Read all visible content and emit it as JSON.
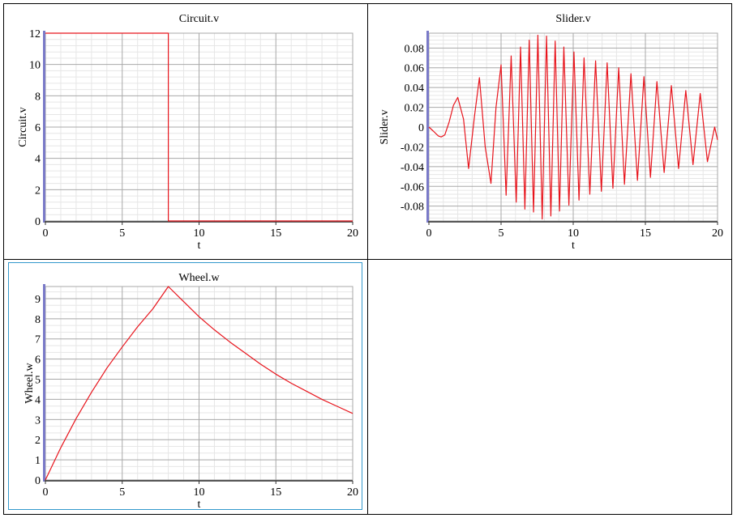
{
  "colors": {
    "line": "#e8141c",
    "grid_major": "#a8a8a8",
    "grid_minor": "#e6e6e6",
    "left_axis_bar": "#7a7ac8",
    "selected_border": "#3399cc"
  },
  "plots": [
    {
      "title": "Circuit.v",
      "xlabel": "t",
      "ylabel": "Circuit.v",
      "yticklabels": [
        "0",
        "2",
        "4",
        "6",
        "8",
        "10",
        "12"
      ],
      "xticklabels": [
        "0",
        "5",
        "10",
        "15",
        "20"
      ]
    },
    {
      "title": "Slider.v",
      "xlabel": "t",
      "ylabel": "Slider.v",
      "yticklabels": [
        "-0.08",
        "-0.06",
        "-0.04",
        "-0.02",
        "0",
        "0.02",
        "0.04",
        "0.06",
        "0.08"
      ],
      "xticklabels": [
        "0",
        "5",
        "10",
        "15",
        "20"
      ]
    },
    {
      "title": "Wheel.w",
      "xlabel": "t",
      "ylabel": "Wheel.w",
      "yticklabels": [
        "0",
        "1",
        "2",
        "3",
        "4",
        "5",
        "6",
        "7",
        "8",
        "9"
      ],
      "xticklabels": [
        "0",
        "5",
        "10",
        "15",
        "20"
      ]
    }
  ],
  "chart_data": [
    {
      "type": "line",
      "title": "Circuit.v",
      "xlabel": "t",
      "ylabel": "Circuit.v",
      "xlim": [
        0,
        20
      ],
      "ylim": [
        0,
        12
      ],
      "xticks": [
        0,
        5,
        10,
        15,
        20
      ],
      "yticks": [
        0,
        2,
        4,
        6,
        8,
        10,
        12
      ],
      "grid": true,
      "series": [
        {
          "x": [
            0,
            8,
            8,
            20
          ],
          "values": [
            12,
            12,
            0,
            0
          ]
        }
      ]
    },
    {
      "type": "line",
      "title": "Slider.v",
      "xlabel": "t",
      "ylabel": "Slider.v",
      "xlim": [
        0,
        20
      ],
      "ylim": [
        -0.095,
        0.095
      ],
      "xticks": [
        0,
        5,
        10,
        15,
        20
      ],
      "yticks": [
        -0.08,
        -0.06,
        -0.04,
        -0.02,
        0,
        0.02,
        0.04,
        0.06,
        0.08
      ],
      "grid": true,
      "series": [
        {
          "x": [
            0,
            0.3,
            0.65,
            0.85,
            1.1,
            1.4,
            1.7,
            2.0,
            2.4,
            2.75,
            3.15,
            3.5,
            3.9,
            4.3,
            4.65,
            5.0,
            5.35,
            5.7,
            6.05,
            6.35,
            6.65,
            6.95,
            7.25,
            7.55,
            7.85,
            8.15,
            8.45,
            8.75,
            9.05,
            9.35,
            9.7,
            10.05,
            10.4,
            10.75,
            11.15,
            11.55,
            11.95,
            12.35,
            12.75,
            13.15,
            13.55,
            14.0,
            14.45,
            14.9,
            15.35,
            15.8,
            16.3,
            16.8,
            17.3,
            17.8,
            18.3,
            18.8,
            19.3,
            19.8,
            20.0
          ],
          "values": [
            0,
            -0.004,
            -0.009,
            -0.01,
            -0.008,
            0.005,
            0.022,
            0.03,
            0.008,
            -0.042,
            0.01,
            0.05,
            -0.02,
            -0.057,
            0.02,
            0.063,
            -0.069,
            0.072,
            -0.076,
            0.081,
            -0.083,
            0.088,
            -0.086,
            0.093,
            -0.093,
            0.092,
            -0.09,
            0.087,
            -0.085,
            0.081,
            -0.079,
            0.076,
            -0.074,
            0.07,
            -0.068,
            0.067,
            -0.065,
            0.065,
            -0.062,
            0.06,
            -0.058,
            0.054,
            -0.054,
            0.051,
            -0.051,
            0.046,
            -0.046,
            0.042,
            -0.042,
            0.037,
            -0.038,
            0.034,
            -0.035,
            0.0,
            -0.013
          ]
        }
      ]
    },
    {
      "type": "line",
      "title": "Wheel.w",
      "xlabel": "t",
      "ylabel": "Wheel.w",
      "xlim": [
        0,
        20
      ],
      "ylim": [
        0,
        9.6
      ],
      "xticks": [
        0,
        5,
        10,
        15,
        20
      ],
      "yticks": [
        0,
        1,
        2,
        3,
        4,
        5,
        6,
        7,
        8,
        9
      ],
      "grid": true,
      "series": [
        {
          "x": [
            0,
            1,
            2,
            3,
            4,
            5,
            6,
            7,
            8,
            9,
            10,
            11,
            12,
            13,
            14,
            15,
            16,
            17,
            18,
            19,
            20
          ],
          "values": [
            0,
            1.6,
            3.05,
            4.35,
            5.55,
            6.6,
            7.6,
            8.5,
            9.6,
            8.85,
            8.1,
            7.45,
            6.85,
            6.3,
            5.75,
            5.25,
            4.8,
            4.4,
            4.0,
            3.65,
            3.3
          ]
        }
      ]
    }
  ]
}
